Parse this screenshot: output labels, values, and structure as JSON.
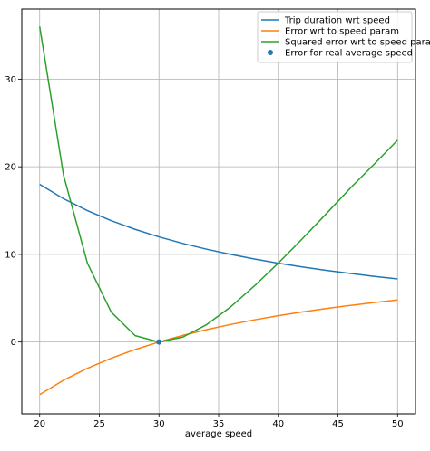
{
  "chart_data": {
    "type": "line",
    "title": "",
    "xlabel": "average speed",
    "ylabel": "",
    "xlim": [
      18.5,
      51.5
    ],
    "ylim": [
      -8.2,
      38.0
    ],
    "xticks": [
      20,
      25,
      30,
      35,
      40,
      45,
      50
    ],
    "yticks": [
      0,
      10,
      20,
      30
    ],
    "grid": true,
    "legend_position": "top-right",
    "series": [
      {
        "name": "Trip duration wrt speed",
        "kind": "line",
        "color": "#1f77b4",
        "x": [
          20,
          22,
          24,
          26,
          28,
          30,
          32,
          34,
          36,
          38,
          40,
          42,
          44,
          46,
          48,
          50
        ],
        "y": [
          18.0,
          16.36,
          15.0,
          13.85,
          12.86,
          12.0,
          11.25,
          10.59,
          10.0,
          9.47,
          9.0,
          8.57,
          8.18,
          7.83,
          7.5,
          7.2
        ]
      },
      {
        "name": "Error wrt to speed param",
        "kind": "line",
        "color": "#ff7f0e",
        "x": [
          20,
          22,
          24,
          26,
          28,
          30,
          32,
          34,
          36,
          38,
          40,
          42,
          44,
          46,
          48,
          50
        ],
        "y": [
          -6.0,
          -4.36,
          -3.0,
          -1.85,
          -0.86,
          0.0,
          0.75,
          1.41,
          2.0,
          2.53,
          3.0,
          3.43,
          3.82,
          4.17,
          4.5,
          4.8
        ]
      },
      {
        "name": "Squared error wrt to speed param",
        "kind": "line",
        "color": "#2ca02c",
        "x": [
          20,
          22,
          24,
          26,
          28,
          30,
          32,
          34,
          36,
          38,
          40,
          42,
          44,
          46,
          48,
          50
        ],
        "y": [
          36.0,
          19.04,
          9.0,
          3.41,
          0.73,
          0.0,
          0.56,
          1.99,
          4.0,
          6.4,
          9.0,
          11.76,
          14.61,
          17.51,
          20.25,
          23.04
        ]
      },
      {
        "name": "Error for real average speed",
        "kind": "scatter",
        "color": "#1f77b4",
        "x": [
          30
        ],
        "y": [
          0
        ]
      }
    ]
  }
}
